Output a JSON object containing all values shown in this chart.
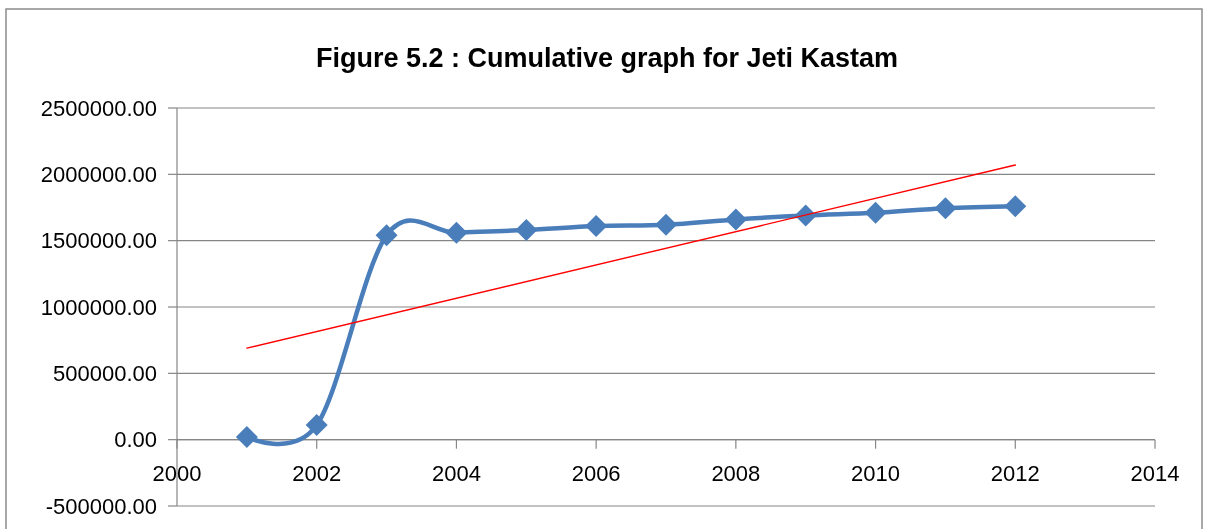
{
  "chart_data": {
    "type": "line",
    "title": "Figure 5.2 : Cumulative graph for Jeti Kastam",
    "x": [
      2001,
      2002,
      2003,
      2004,
      2005,
      2006,
      2007,
      2008,
      2009,
      2010,
      2011,
      2012
    ],
    "xlim": [
      2000,
      2014
    ],
    "xticks": [
      2000,
      2002,
      2004,
      2006,
      2008,
      2010,
      2012,
      2014
    ],
    "ylim": [
      -500000,
      2500000
    ],
    "yticks": [
      {
        "value": -500000,
        "label": "-500000.00"
      },
      {
        "value": 0,
        "label": "0.00"
      },
      {
        "value": 500000,
        "label": "500000.00"
      },
      {
        "value": 1000000,
        "label": "1000000.00"
      },
      {
        "value": 1500000,
        "label": "1500000.00"
      },
      {
        "value": 2000000,
        "label": "2000000.00"
      },
      {
        "value": 2500000,
        "label": "2500000.00"
      }
    ],
    "grid": "y",
    "series": [
      {
        "color": "#4a7ebb",
        "marker": "diamond",
        "line_style": "solid",
        "values": [
          20000,
          110000,
          1540000,
          1560000,
          1580000,
          1610000,
          1620000,
          1660000,
          1690000,
          1710000,
          1745000,
          1760000
        ]
      },
      {
        "type": "line",
        "color": "#ff0000",
        "marker": "none",
        "line_style": "solid",
        "x": [
          2001,
          2012
        ],
        "values": [
          690000,
          2070000
        ]
      }
    ]
  }
}
